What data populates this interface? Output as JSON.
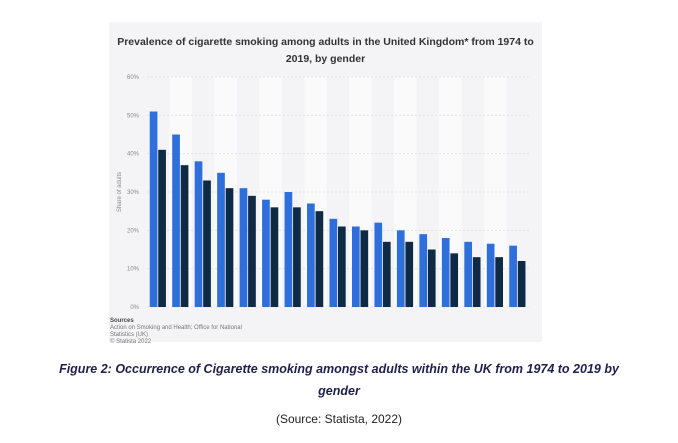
{
  "chart_data": {
    "type": "bar",
    "title_line1": "Prevalence of cigarette smoking among adults in the United Kingdom* from 1974 to",
    "title_line2": "2019, by gender",
    "xlabel": "",
    "ylabel": "Share of adults",
    "ylim": [
      0,
      60
    ],
    "yticks": [
      "0%",
      "10%",
      "20%",
      "30%",
      "40%",
      "50%",
      "60%"
    ],
    "grid": true,
    "categories": [
      "",
      "",
      "",
      "",
      "",
      "",
      "",
      "",
      "",
      "",
      "",
      "",
      "",
      "",
      "",
      "",
      ""
    ],
    "series": [
      {
        "values": [
          51,
          45,
          38,
          35,
          31,
          28,
          30,
          27,
          23,
          21,
          22,
          20,
          19,
          18,
          17,
          16.5,
          16
        ],
        "color": "#2f6fdc"
      },
      {
        "values": [
          41,
          37,
          33,
          31,
          29,
          26,
          26,
          25,
          21,
          20,
          17,
          17,
          15,
          14,
          13,
          13,
          12
        ],
        "color": "#0f2a44"
      }
    ]
  },
  "source": {
    "heading": "Sources",
    "lines": [
      "Action on Smoking and Health; Office for National",
      "Statistics (UK)",
      "© Statista 2022"
    ]
  },
  "caption": {
    "line1": "Figure 2: Occurrence of Cigarette smoking amongst adults within the UK from 1974 to 2019 by",
    "line2": "gender"
  },
  "source_note": "(Source: Statista, 2022)"
}
